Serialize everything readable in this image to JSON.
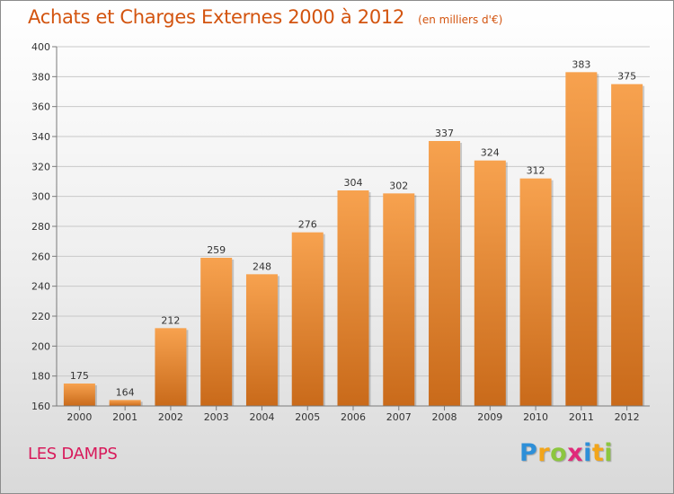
{
  "header": {
    "title": "Achats et Charges Externes 2000 à 2012",
    "subtitle": "(en milliers d'€)"
  },
  "footer": {
    "place": "LES DAMPS",
    "brand_letters": [
      "P",
      "r",
      "o",
      "x",
      "i",
      "t",
      "i"
    ],
    "brand_colors": [
      "#2e8fd8",
      "#f2a51a",
      "#8cc63f",
      "#e02a7a",
      "#2e8fd8",
      "#f2a51a",
      "#8cc63f"
    ]
  },
  "colors": {
    "bar_light": "#f7a24f",
    "bar_dark": "#c96a1a",
    "grid": "#c8c8c8",
    "axis": "#7a7a7a",
    "text": "#333333"
  },
  "chart_data": {
    "type": "bar",
    "categories": [
      "2000",
      "2001",
      "2002",
      "2003",
      "2004",
      "2005",
      "2006",
      "2007",
      "2008",
      "2009",
      "2010",
      "2011",
      "2012"
    ],
    "values": [
      175,
      164,
      212,
      259,
      248,
      276,
      304,
      302,
      337,
      324,
      312,
      383,
      375
    ],
    "ylim": [
      160,
      400
    ],
    "yticks": [
      160,
      180,
      200,
      220,
      240,
      260,
      280,
      300,
      320,
      340,
      360,
      380,
      400
    ],
    "grid": true,
    "title": "Achats et Charges Externes 2000 à 2012",
    "xlabel": "",
    "ylabel": ""
  }
}
